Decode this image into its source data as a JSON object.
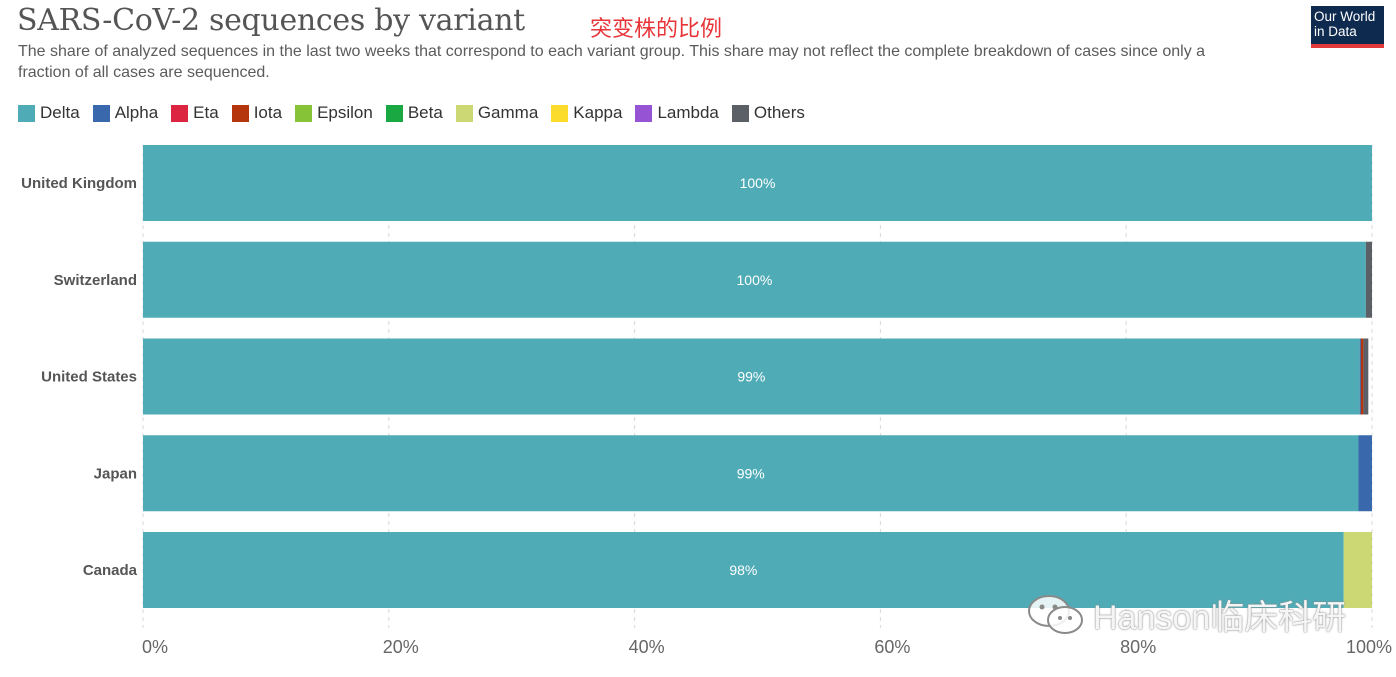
{
  "header": {
    "title": "SARS-CoV-2 sequences by variant",
    "annotation": "突变株的比例",
    "subtitle": "The share of analyzed sequences in the last two weeks that correspond to each variant group. This share may not reflect the complete breakdown of cases since only a fraction of all cases are sequenced.",
    "logo_line1": "Our World",
    "logo_line2": "in Data"
  },
  "watermark": {
    "text": "Hanson临床科研",
    "icon": "wechat-icon"
  },
  "colors": {
    "Delta": "#4fabb6",
    "Alpha": "#3a68ad",
    "Eta": "#dc2540",
    "Iota": "#b5360d",
    "Epsilon": "#86c337",
    "Beta": "#1aa842",
    "Gamma": "#ccd873",
    "Kappa": "#fbdb2c",
    "Lambda": "#9654d4",
    "Others": "#5b5f66",
    "grid": "#d8d8d8",
    "tick": "#666666"
  },
  "chart_data": {
    "type": "bar",
    "orientation": "horizontal",
    "stacked": true,
    "categories": [
      "United Kingdom",
      "Switzerland",
      "United States",
      "Japan",
      "Canada"
    ],
    "series": [
      {
        "name": "Delta",
        "values": [
          100,
          99.5,
          99.0,
          98.9,
          97.7
        ]
      },
      {
        "name": "Alpha",
        "values": [
          0,
          0,
          0.1,
          1.1,
          0
        ]
      },
      {
        "name": "Eta",
        "values": [
          0,
          0,
          0,
          0,
          0
        ]
      },
      {
        "name": "Iota",
        "values": [
          0,
          0,
          0.2,
          0,
          0
        ]
      },
      {
        "name": "Epsilon",
        "values": [
          0,
          0,
          0,
          0,
          0
        ]
      },
      {
        "name": "Beta",
        "values": [
          0,
          0,
          0,
          0,
          0
        ]
      },
      {
        "name": "Gamma",
        "values": [
          0,
          0,
          0,
          0,
          2.3
        ]
      },
      {
        "name": "Kappa",
        "values": [
          0,
          0,
          0,
          0,
          0
        ]
      },
      {
        "name": "Lambda",
        "values": [
          0,
          0,
          0,
          0,
          0
        ]
      },
      {
        "name": "Others",
        "values": [
          0,
          0.5,
          0.4,
          0,
          0
        ]
      }
    ],
    "bar_labels": [
      "100%",
      "100%",
      "99%",
      "99%",
      "98%"
    ],
    "xticks": [
      "0%",
      "20%",
      "40%",
      "60%",
      "80%",
      "100%"
    ],
    "xlim": [
      0,
      100
    ],
    "grid": "vertical dashed",
    "legend": "top-left"
  }
}
